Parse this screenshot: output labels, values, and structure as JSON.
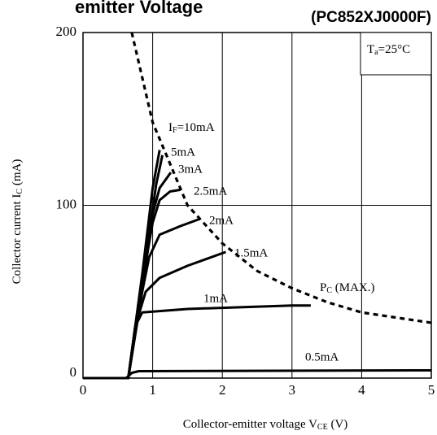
{
  "chart_data": {
    "type": "line",
    "title": "emitter Voltage",
    "subtitle": "(PC852XJ0000F)",
    "xlabel": [
      "Collector-emitter voltage V",
      "CE",
      " (V)"
    ],
    "ylabel": [
      "Collector current I",
      "C",
      " (mA)"
    ],
    "condition": [
      "T",
      "a",
      "=25°C"
    ],
    "current_symbol": [
      "I",
      "F"
    ],
    "xlim": [
      0,
      5
    ],
    "xticks": [
      0,
      1,
      2,
      3,
      4,
      5
    ],
    "ylim": [
      0,
      200
    ],
    "yticks": [
      0,
      100,
      200
    ],
    "grid": true,
    "color": "#000000",
    "series": [
      {
        "name": "=10mA",
        "x": [
          0,
          0.65,
          0.85,
          1.0,
          1.1
        ],
        "values": [
          0,
          0,
          60,
          110,
          132
        ]
      },
      {
        "name": "5mA",
        "x": [
          0,
          0.65,
          0.85,
          1.05,
          1.14
        ],
        "values": [
          0,
          0,
          55,
          112,
          129
        ]
      },
      {
        "name": "3mA",
        "x": [
          0,
          0.65,
          0.85,
          1.0,
          1.1,
          1.26
        ],
        "values": [
          0,
          0,
          50,
          95,
          110,
          119
        ]
      },
      {
        "name": "2.5mA",
        "x": [
          0,
          0.65,
          0.85,
          1.0,
          1.1,
          1.25,
          1.4
        ],
        "values": [
          0,
          0,
          55,
          90,
          103,
          108,
          109
        ]
      },
      {
        "name": "2mA",
        "x": [
          0,
          0.65,
          0.8,
          0.95,
          1.1,
          1.4,
          1.67
        ],
        "values": [
          0,
          0,
          40,
          70,
          83,
          88,
          92
        ]
      },
      {
        "name": "1.5mA",
        "x": [
          0,
          0.65,
          0.75,
          0.9,
          1.1,
          1.5,
          2.05
        ],
        "values": [
          0,
          0,
          30,
          50,
          58,
          65,
          73
        ]
      },
      {
        "name": "1mA",
        "x": [
          0,
          0.65,
          0.75,
          0.85,
          1.5,
          3.0,
          3.27
        ],
        "values": [
          0,
          0,
          30,
          38,
          40,
          42,
          42
        ]
      },
      {
        "name": "0.5mA",
        "x": [
          0,
          0.62,
          0.7,
          0.8,
          5
        ],
        "values": [
          0,
          0,
          3,
          4,
          4.5
        ]
      }
    ],
    "limit_curve": {
      "name": [
        "P",
        "C",
        " (MAX.)"
      ],
      "x": [
        0.7,
        1,
        1.5,
        2,
        2.5,
        3,
        3.5,
        4,
        4.5,
        5
      ],
      "values": [
        200,
        148,
        100,
        78,
        62,
        52,
        44,
        38,
        35,
        32
      ]
    }
  }
}
